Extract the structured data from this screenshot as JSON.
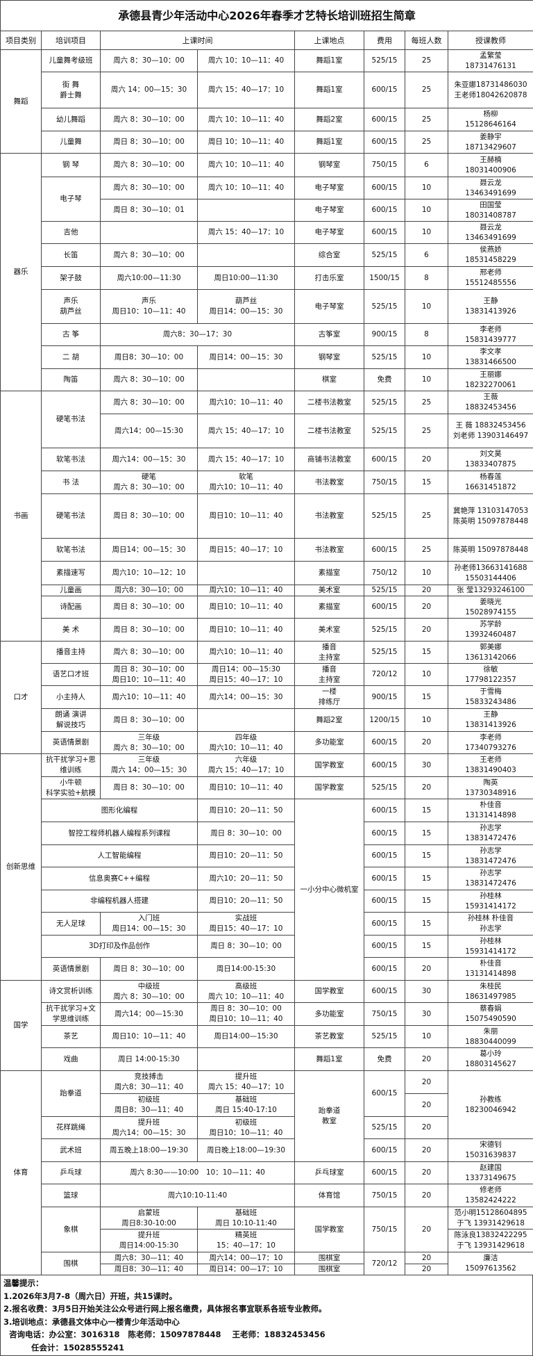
{
  "title": "承德县青少年活动中心2026年春季才艺特长培训班招生简章",
  "headers": [
    "项目类别",
    "培训项目",
    "上课时间",
    "上课地点",
    "费用",
    "每班人数",
    "授课教师"
  ],
  "categories": {
    "dance": "舞蹈",
    "music": "器乐",
    "art": "书画",
    "speech": "口才",
    "innovation": "创新思维",
    "guoxue": "国学",
    "sports": "体育"
  },
  "shared": {
    "computer_room": "一小分中心微机室",
    "taekwondo_room": "跆拳道\n教室",
    "taekwondo_teacher": "孙教练\n18230046942"
  },
  "rows": [
    {
      "item": "儿童舞考级班",
      "t1": "周六 8：30—10：00",
      "t2": "周六 10：10—11：40",
      "place": "舞蹈1室",
      "fee": "525/15",
      "size": "25",
      "teacher": "孟繁莹\n18731476131"
    },
    {
      "item": "街 舞\n爵士舞",
      "t1": "周六 14：00—15：30",
      "t2": "周六 15：40—17：10",
      "place": "舞蹈1室",
      "fee": "600/15",
      "size": "25",
      "teacher": "朱亚娜18731486030\n王老师18042620878"
    },
    {
      "item": "幼儿舞蹈",
      "t1": "周六 8：30—10：00",
      "t2": "周六 10：10—11：40",
      "place": "舞蹈2室",
      "fee": "600/15",
      "size": "25",
      "teacher": "杨柳\n15128646164"
    },
    {
      "item": "儿童舞",
      "t1": "周日 8：30—10：00",
      "t2": "周日 10：10—11：40",
      "place": "舞蹈1室",
      "fee": "600/15",
      "size": "25",
      "teacher": "姜静宇\n18713429607"
    },
    {
      "item": "钢 琴",
      "t1": "周六 8：30—10：00",
      "t2": "周六 10：10—11：40",
      "place": "钢琴室",
      "fee": "750/15",
      "size": "6",
      "teacher": "王赫楠\n18031400906"
    },
    {
      "item": "电子琴",
      "t1": "周六 8：30—10：00",
      "t2": "周六 10：10—11：40",
      "place": "电子琴室",
      "fee": "600/15",
      "size": "10",
      "teacher": "聂云龙\n13463491699"
    },
    {
      "t1": "周日 8：30—10：01",
      "t2": "",
      "place": "电子琴室",
      "fee": "600/15",
      "size": "10",
      "teacher": "田国莹\n18031408787"
    },
    {
      "item": "吉他",
      "t1": "",
      "t2": "周六 15：40—17：10",
      "place": "电子琴室",
      "fee": "600/15",
      "size": "10",
      "teacher": "聂云龙\n13463491699"
    },
    {
      "item": "长笛",
      "t1": "周六 8：30—10：00",
      "t2": "",
      "place": "综合室",
      "fee": "525/15",
      "size": "6",
      "teacher": "侯燕娇\n18531458229"
    },
    {
      "item": "架子鼓",
      "t1": "周六10:00—11:30",
      "t2": "周日10:00—11:30",
      "place": "打击乐室",
      "fee": "1500/15",
      "size": "8",
      "teacher": "邢老师\n15512485556"
    },
    {
      "item": "声乐\n葫芦丝",
      "t1": "声乐\n周日10：10—11：40",
      "t2": "葫芦丝\n周日14：00—15：30",
      "place": "电子琴室",
      "fee": "525/15",
      "size": "10",
      "teacher": "王静\n13831413926"
    },
    {
      "item": "古 筝",
      "t1": "周六8：30—17：30",
      "place": "古筝室",
      "fee": "900/15",
      "size": "8",
      "teacher": "李老师\n15831439777"
    },
    {
      "item": "二 胡",
      "t1": "周日8：30—10：00",
      "t2": "周日14：00—15：30",
      "place": "钢琴室",
      "fee": "525/15",
      "size": "10",
      "teacher": "李文孝\n13831466500"
    },
    {
      "item": "陶笛",
      "t1": "周六 8：30—10：00",
      "t2": "",
      "place": "棋室",
      "fee": "免费",
      "size": "10",
      "teacher": "王丽娜\n18232270061"
    },
    {
      "item": "硬笔书法",
      "t1": "周六 8：30—10：00",
      "t2": "周六10：10—11：40",
      "place": "二楼书法教室",
      "fee": "525/15",
      "size": "25",
      "teacher": "王薇\n18832453456"
    },
    {
      "t1": "周六14：00—15:30",
      "t2": "周六 15：40—17：10",
      "place": "二楼书法教室",
      "fee": "525/15",
      "size": "25",
      "teacher": "王 薇 18832453456\n刘老师 13903146497"
    },
    {
      "item": "软笔书法",
      "t1": "周六14：00—15：30",
      "t2": "周六 15：40—17：10",
      "place": "商铺书法教室",
      "fee": "600/15",
      "size": "20",
      "teacher": "刘文昊\n13833407875"
    },
    {
      "item": "书 法",
      "t1": "硬笔\n周六 8：30—10：00",
      "t2": "软笔\n周六10：10—11：40",
      "place": "书法教室",
      "fee": "750/15",
      "size": "15",
      "teacher": "杨春莲\n16631451872"
    },
    {
      "item": "硬笔书法",
      "t1": "周日 8：30—10：00",
      "t2": "周日10：10—11：40",
      "place": "书法教室",
      "fee": "525/15",
      "size": "25",
      "teacher": "冀艳萍 13103147053\n陈英明 15097878448"
    },
    {
      "item": "软笔书法",
      "t1": "周日14：00—15：30",
      "t2": "周日15：40—17：10",
      "place": "书法教室",
      "fee": "600/15",
      "size": "25",
      "teacher": "陈英明 15097878448"
    },
    {
      "item": "素描速写",
      "t1": "周六10：10—12：10",
      "t2": "",
      "place": "素描室",
      "fee": "750/12",
      "size": "10",
      "teacher": "孙老师13663141688\n15503144406"
    },
    {
      "item": "儿童画",
      "t1": "周六8：30—10：00",
      "t2": "周六10：10—11：40",
      "place": "美术室",
      "fee": "525/15",
      "size": "20",
      "teacher": "张 莹13293246100"
    },
    {
      "item": "诗配画",
      "t1": "周日 8：30—10：00",
      "t2": "周日10：10—11：40",
      "place": "素描室",
      "fee": "600/15",
      "size": "20",
      "teacher": "姜晓光\n15028974155"
    },
    {
      "item": "美 术",
      "t1": "周日 8：30—10：00",
      "t2": "周日10：10—11：40",
      "place": "美术室",
      "fee": "525/15",
      "size": "20",
      "teacher": "苏学龄\n13932460487"
    },
    {
      "item": "播音主持",
      "t1": "周六 8：30—10：00",
      "t2": "周六10：10—11：40",
      "place": "播音\n主持室",
      "fee": "525/15",
      "size": "15",
      "teacher": "郭美娜\n13613142066"
    },
    {
      "item": "语艺口才班",
      "t1": "周日 8：30—10：00\n周日10：10—11：40",
      "t2": "周日14：00—15:30\n周日15：40—17：10",
      "place": "播音\n主持室",
      "fee": "720/12",
      "size": "10",
      "teacher": "徐敏\n17798122357"
    },
    {
      "item": "小主持人",
      "t1": "周六10：10—11：40",
      "t2": "周六14：00—15：30",
      "place": "一楼\n排练厅",
      "fee": "900/15",
      "size": "15",
      "teacher": "于雪梅\n15833243486"
    },
    {
      "item": "朗诵 演讲\n解说技巧",
      "t1": "周日 8：30—10：00",
      "t2": "",
      "place": "舞蹈2室",
      "fee": "1200/15",
      "size": "10",
      "teacher": "王静\n13831413926"
    },
    {
      "item": "英语情景剧",
      "t1": "三年级\n周六 8：30—10：00",
      "t2": "四年级\n周六10：10—11：40",
      "place": "多功能室",
      "fee": "600/15",
      "size": "20",
      "teacher": "李老师\n17340793276"
    },
    {
      "item": "抗干扰学习+思维训练",
      "t1": "三年级\n周六 14：00—15：30",
      "t2": "六年级\n周六 15：40—17：10",
      "place": "国学教室",
      "fee": "600/15",
      "size": "30",
      "teacher": "王老师\n13831490403"
    },
    {
      "item": "小牛顿\n科学实验+航模",
      "t1": "周日 8：30—10：00",
      "t2": "周日10：10—11：40",
      "place": "国学教室",
      "fee": "525/15",
      "size": "20",
      "teacher": "陶英\n13730348916"
    },
    {
      "item": "图形化编程",
      "t2": "周日10：20—11：50",
      "fee": "600/15",
      "size": "15",
      "teacher": "朴佳音\n13131414898"
    },
    {
      "item": "智控工程师机器人编程系列课程",
      "t2": "周日 8：30—10：00",
      "fee": "600/15",
      "size": "15",
      "teacher": "孙志学\n13831472476"
    },
    {
      "item": "人工智能编程",
      "t2": "周日10：20—11：50",
      "fee": "600/15",
      "size": "15",
      "teacher": "孙志学\n13831472476"
    },
    {
      "item": "信息奥赛C++编程",
      "t2": "周六10：20—11：50",
      "fee": "600/15",
      "size": "15",
      "teacher": "孙志学\n13831472476"
    },
    {
      "item": "非编程机器人搭建",
      "t2": "周日10：20—11：50",
      "fee": "600/15",
      "size": "15",
      "teacher": "孙桂林\n15931414172"
    },
    {
      "item": "无人足球",
      "t1": "入门班\n周日14：00—15：30",
      "t2": "实战班\n周日15：40—17：10",
      "fee": "600/15",
      "size": "15",
      "teacher": "孙桂林 朴佳音\n孙志学"
    },
    {
      "item": "3D打印及作品创作",
      "t2": "周日 8：30—10：00",
      "fee": "600/15",
      "size": "15",
      "teacher": "孙桂林\n15931414172"
    },
    {
      "item": "英语情景剧",
      "t1": "周日 8：30—10：00",
      "t2": "周日14:00-15:30",
      "fee": "600/15",
      "size": "20",
      "teacher": "朴佳音\n13131414898"
    },
    {
      "item": "诗文赏析训练",
      "t1": "中级班\n周六 8：30—10：00",
      "t2": "高级班\n周六 10：10—11：40",
      "place": "国学教室",
      "fee": "600/15",
      "size": "30",
      "teacher": "朱桂民\n18631497985"
    },
    {
      "item": "抗干扰学习+文学思维训练",
      "t1": "周六14：00—15:30",
      "t2": "周日 8：30—10：00\n周日10：10—11：40",
      "place": "多功能室",
      "fee": "750/15",
      "size": "30",
      "teacher": "蔡春娟\n15075490590"
    },
    {
      "item": "茶艺",
      "t1": "周日10：10—11：40",
      "t2": "周日14:00—15:30",
      "place": "茶艺教室",
      "fee": "525/15",
      "size": "10",
      "teacher": "朱丽\n18830440099"
    },
    {
      "item": "戏曲",
      "t1": "周日 14:00-15:30",
      "t2": "",
      "place": "舞蹈1室",
      "fee": "免费",
      "size": "20",
      "teacher": "葛小玲\n18803145627"
    },
    {
      "item": "跆拳道",
      "t1": "竞技搏击\n周六8：30—11：40",
      "t2": "提升班\n周六 15：40—17：10",
      "fee": "600/15",
      "size": "20"
    },
    {
      "t1": "初级班\n周日8：30—11：40",
      "t2": "基础班\n周日 15:40-17:10",
      "size": "20"
    },
    {
      "item": "花样跳绳",
      "t1": "提升班\n周六14：00—15：30",
      "t2": "初级班\n周日10：10—11：40",
      "fee": "525/15",
      "size": "20"
    },
    {
      "item": "武术班",
      "t1": "周五晚上18:00—19:30",
      "t2": "周日晚上18:00—19:30",
      "fee": "600/15",
      "size": "20",
      "teacher": "宋德钊\n15031639837"
    },
    {
      "item": "乒乓球",
      "t1": "周六 8:30——10:00　10：10—11：40",
      "place": "乒乓球室",
      "fee": "600/15",
      "size": "20",
      "teacher": "赵建国\n13373149675"
    },
    {
      "item": "篮球",
      "t1": "周六10:10-11:40",
      "place": "体育馆",
      "fee": "750/15",
      "size": "20",
      "teacher": "修老师\n13582424222"
    },
    {
      "item": "象棋",
      "t1": "启蒙班\n周日8:30-10:00",
      "t2": "基础班\n周日 10:10-11:40",
      "place": "国学教室",
      "fee": "750/15",
      "size": "20",
      "teacher": "范小明15128604895\n于飞 13931429618"
    },
    {
      "t1": "提升班\n周日14:00-15:30",
      "t2": "精英班\n15：40—17：10",
      "teacher": "陈泳良13832422295\n于飞 13931429618"
    },
    {
      "item": "围棋",
      "t1": "周六8：30—11：40",
      "t2": "周六14：00—17：10",
      "place": "围棋室",
      "fee": "720/12",
      "size": "20",
      "teacher": "廉洁\n15097613562"
    },
    {
      "t1": "周日8：30—11：40",
      "t2": "周日14：00—17：10",
      "place": "围棋室",
      "size": "20"
    }
  ],
  "notes": [
    "温馨提示：",
    "1.2026年3月7-8（周六日）开班，共15课时。",
    "2.报名收费：3月5日开始关注公众号进行网上报名缴费，具体报名事宜联系各班专业教师。",
    "3.培训地点：承德县文体中心一楼青少年活动中心",
    "  咨询电话：办公室：3016318   陈老师：15097878448    王老师：18832453456",
    "          任会计：15028555241"
  ]
}
